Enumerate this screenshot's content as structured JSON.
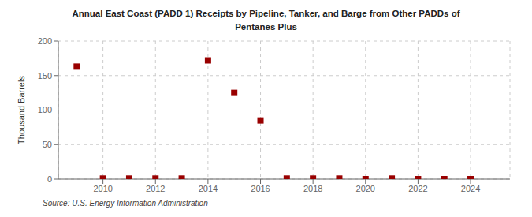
{
  "chart_data": {
    "type": "scatter",
    "title": "Annual East Coast (PADD 1) Receipts by Pipeline, Tanker, and Barge from Other PADDs of",
    "subtitle": "Pentanes Plus",
    "y_label": "Thousand Barrels",
    "annotations": [
      "Source: U.S. Energy Information Administration"
    ],
    "x": [
      2009,
      2010,
      2011,
      2012,
      2013,
      2014,
      2015,
      2016,
      2017,
      2018,
      2019,
      2020,
      2021,
      2022,
      2023,
      2024
    ],
    "values": [
      163,
      0.8,
      0.8,
      0.8,
      0.8,
      172,
      125,
      85,
      0.8,
      0.8,
      0.8,
      0,
      0.8,
      0,
      0,
      0
    ],
    "color": "#990000",
    "marker": "square",
    "xlim": [
      2008.3,
      2025.5
    ],
    "xticks": [
      2010,
      2012,
      2014,
      2016,
      2018,
      2020,
      2022,
      2024
    ],
    "ylim": [
      0,
      200
    ],
    "yticks": [
      0,
      50,
      100,
      150,
      200
    ],
    "grid": true
  }
}
